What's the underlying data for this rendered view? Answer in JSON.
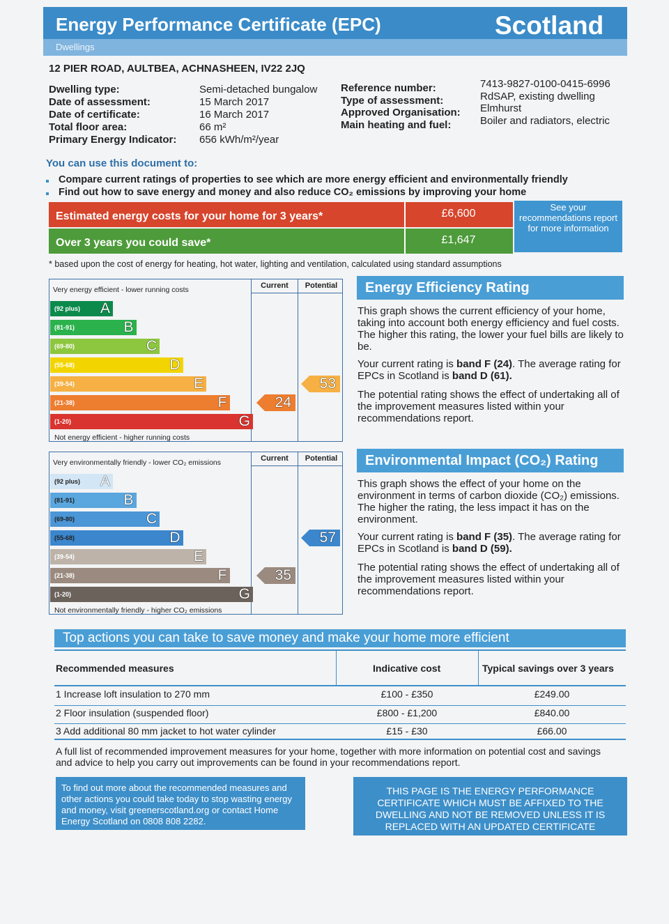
{
  "header": {
    "title": "Energy Performance Certificate (EPC)",
    "country": "Scotland",
    "subtitle": "Dwellings"
  },
  "address": "12 PIER ROAD, AULTBEA, ACHNASHEEN, IV22 2JQ",
  "details": {
    "left": [
      [
        "Dwelling type:",
        "Semi-detached bungalow"
      ],
      [
        "Date of assessment:",
        "15 March 2017"
      ],
      [
        "Date of certificate:",
        "16 March 2017"
      ],
      [
        "Total floor area:",
        "66 m²"
      ],
      [
        "Primary Energy Indicator:",
        "656 kWh/m²/year"
      ]
    ],
    "right": [
      [
        "Reference number:",
        "7413-9827-0100-0415-6996"
      ],
      [
        "Type of assessment:",
        "RdSAP, existing dwelling"
      ],
      [
        "Approved Organisation:",
        "Elmhurst"
      ],
      [
        "Main heating and fuel:",
        "Boiler and radiators, electric"
      ]
    ]
  },
  "intro": {
    "lead": "You can use this document to:",
    "bullets": [
      "Compare current ratings of properties to see which are more energy efficient and environmentally friendly",
      "Find out how to save energy and money and also reduce CO₂ emissions by improving your home"
    ]
  },
  "costs": {
    "rows": [
      {
        "label": "Estimated energy costs for your home for 3 years*",
        "value": "£6,600",
        "color": "#d6452c"
      },
      {
        "label": "Over 3 years you could save*",
        "value": "£1,647",
        "color": "#4d9b3a"
      }
    ],
    "note": "See your recommendations report for more information",
    "footnote": "* based upon the cost of energy for heating, hot water, lighting and ventilation, calculated using standard assumptions"
  },
  "energy": {
    "top": "Very energy efficient - lower running costs",
    "bottom": "Not energy efficient - higher running costs",
    "columns": [
      "Current",
      "Potential"
    ],
    "bands": [
      {
        "range": "(92 plus)",
        "letter": "A",
        "color": "#0c8a4c"
      },
      {
        "range": "(81-91)",
        "letter": "B",
        "color": "#2bb24c"
      },
      {
        "range": "(69-80)",
        "letter": "C",
        "color": "#8dc63f"
      },
      {
        "range": "(55-68)",
        "letter": "D",
        "color": "#f2d500"
      },
      {
        "range": "(39-54)",
        "letter": "E",
        "color": "#f6b043"
      },
      {
        "range": "(21-38)",
        "letter": "F",
        "color": "#ed7d2f"
      },
      {
        "range": "(1-20)",
        "letter": "G",
        "color": "#d9342f"
      }
    ],
    "current": 24,
    "potential": 53,
    "title": "Energy Efficiency Rating",
    "paragraphs": [
      [
        {
          "text": "This graph shows the current efficiency of your home, taking into account both energy efficiency and fuel costs. The higher this rating, the lower your fuel bills are likely to be.",
          "bold": false
        }
      ],
      [
        {
          "text": "Your current rating is ",
          "bold": false
        },
        {
          "text": "band F (24)",
          "bold": true
        },
        {
          "text": ". The average rating for EPCs in Scotland is ",
          "bold": false
        },
        {
          "text": "band D (61).",
          "bold": true
        }
      ],
      [
        {
          "text": "The potential rating shows the effect of undertaking all of the improvement measures listed within your recommendations report.",
          "bold": false
        }
      ]
    ]
  },
  "environment": {
    "top": "Very environmentally friendly - lower CO₂ emissions",
    "bottom": "Not environmentally friendly - higher CO₂ emissions",
    "columns": [
      "Current",
      "Potential"
    ],
    "bands": [
      {
        "range": "(92 plus)",
        "letter": "A",
        "color": "#d3e6f5"
      },
      {
        "range": "(81-91)",
        "letter": "B",
        "color": "#5aa6de"
      },
      {
        "range": "(69-80)",
        "letter": "C",
        "color": "#4a96d6"
      },
      {
        "range": "(55-68)",
        "letter": "D",
        "color": "#3b86cc"
      },
      {
        "range": "(39-54)",
        "letter": "E",
        "color": "#bdb3a9"
      },
      {
        "range": "(21-38)",
        "letter": "F",
        "color": "#9a8a7f"
      },
      {
        "range": "(1-20)",
        "letter": "G",
        "color": "#6c625c"
      }
    ],
    "current": 35,
    "potential": 57,
    "title": "Environmental Impact (CO₂) Rating",
    "paragraphs": [
      [
        {
          "text": "This graph shows the effect of your home on the environment in terms of carbon dioxide (CO₂) emissions. The higher the rating, the less impact it has on the environment.",
          "bold": false
        }
      ],
      [
        {
          "text": "Your current rating is ",
          "bold": false
        },
        {
          "text": "band F (35)",
          "bold": true
        },
        {
          "text": ". The average rating for EPCs in Scotland is ",
          "bold": false
        },
        {
          "text": "band D (59).",
          "bold": true
        }
      ],
      [
        {
          "text": "The potential rating shows the effect of undertaking all of the improvement measures listed within your recommendations report.",
          "bold": false
        }
      ]
    ]
  },
  "actions": {
    "title": "Top actions you can take to save money and make your home more efficient",
    "headers": [
      "Recommended measures",
      "Indicative cost",
      "Typical savings over 3 years"
    ],
    "rows": [
      [
        "1 Increase loft insulation to 270 mm",
        "£100 - £350",
        "£249.00"
      ],
      [
        "2 Floor insulation (suspended floor)",
        "£800 - £1,200",
        "£840.00"
      ],
      [
        "3 Add additional 80 mm jacket to hot water cylinder",
        "£15 - £30",
        "£66.00"
      ]
    ],
    "note": "A full list of recommended improvement measures for your home, together with more information on potential cost and savings and advice to help you carry out improvements can be found in your recommendations report."
  },
  "footer": {
    "left": "To find out more about the recommended measures and other actions you could take today to stop wasting energy and money, visit greenerscotland.org or contact Home Energy Scotland on 0808 808 2282.",
    "right": "THIS PAGE IS THE ENERGY PERFORMANCE CERTIFICATE WHICH MUST BE AFFIXED TO THE DWELLING AND NOT BE REMOVED UNLESS IT IS REPLACED WITH AN UPDATED CERTIFICATE"
  }
}
